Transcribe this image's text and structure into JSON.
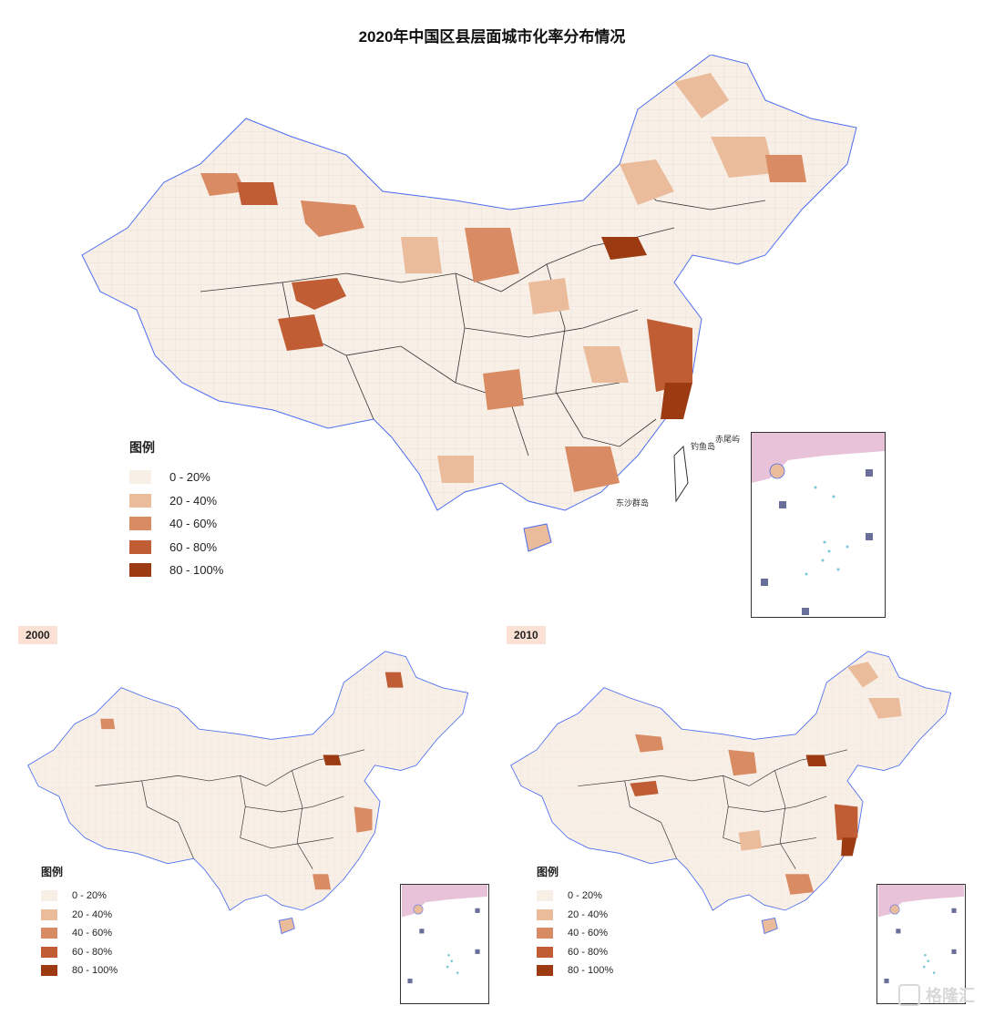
{
  "title": "2020年中国区县层面城市化率分布情况",
  "legend": {
    "title": "图例",
    "items": [
      {
        "label": "0 - 20%",
        "color": "#f8efe7"
      },
      {
        "label": "20 - 40%",
        "color": "#ebbc9c"
      },
      {
        "label": "40 - 60%",
        "color": "#d98b63"
      },
      {
        "label": "60 - 80%",
        "color": "#c05d34"
      },
      {
        "label": "80 - 100%",
        "color": "#9c3a12"
      }
    ]
  },
  "panels": [
    {
      "year": "2000"
    },
    {
      "year": "2010"
    }
  ],
  "place_labels": {
    "diaoyu": "钓鱼岛",
    "chiwei": "赤尾屿",
    "dongsha": "东沙群岛"
  },
  "watermark": "格隆汇",
  "colors": {
    "border": "#333333",
    "coast": "#4a6cf0",
    "badge": "#fbe1d4"
  }
}
